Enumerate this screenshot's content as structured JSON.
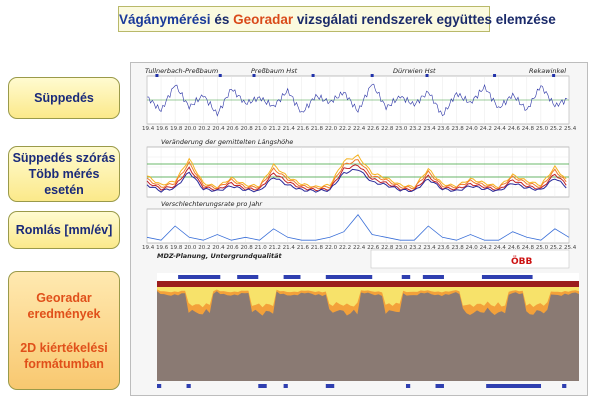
{
  "title": {
    "part1": "Vágánymérési",
    "part2": " és ",
    "part3": "Georadar",
    "part4": " vizsgálati rendszerek együttes elemzése"
  },
  "left_labels": {
    "suppedes": "Süppedés",
    "szoras_line1": "Süppedés szórás",
    "szoras_line2": "Több mérés esetén",
    "romlas": "Romlás [mm/év]",
    "geo_line1": "Georadar",
    "geo_line2": "eredmények",
    "geo_line3": "2D kiértékelési",
    "geo_line4": "formátumban"
  },
  "panel": {
    "stations": [
      "Tullnerbach-Preßbaum",
      "Preßbaum Hst",
      "Dürrwien Hst",
      "Rekawinkel"
    ],
    "chart2_title": "Veränderung der gemittelten Längshöhe",
    "chart3_title": "Verschlechterungsrate pro Jahr",
    "gpr_title": "MDZ-Planung, Untergrundqualität",
    "obb": "ÖBB"
  },
  "chart_data": [
    {
      "type": "line",
      "name_ref": "chart1",
      "x": [
        19.4,
        19.6,
        19.8,
        20.0,
        20.2,
        20.4,
        20.6,
        20.8,
        21.0,
        21.2,
        21.4,
        21.6,
        21.8,
        22.0,
        22.2,
        22.4,
        22.6,
        22.8,
        23.0,
        23.2,
        23.4,
        23.6,
        23.8,
        24.0,
        24.2,
        24.4,
        24.6,
        24.8,
        25.0,
        25.2,
        25.4
      ],
      "x_ticks": [
        "19.4",
        "19.6",
        "19.8",
        "20.0",
        "20.2",
        "20.4",
        "20.6",
        "20.8",
        "21.0",
        "21.2",
        "21.4",
        "21.6",
        "21.8",
        "22.0",
        "22.2",
        "22.4",
        "22.6",
        "22.8",
        "23.0",
        "23.2",
        "23.4",
        "23.6",
        "23.8",
        "24.0",
        "24.2",
        "24.4",
        "24.6",
        "24.8",
        "25.0",
        "25.2",
        "25.4"
      ],
      "series": [
        {
          "values": [
            0.5,
            -1.8,
            2.6,
            -1.2,
            0.8,
            -2.4,
            1.9,
            -0.6,
            0.4,
            -1.1,
            1.6,
            -2.2,
            0.7,
            -0.4,
            1.3,
            -1.9,
            2.8,
            -1.3,
            0.6,
            -0.8,
            1.4,
            -2.6,
            1.1,
            -0.5,
            2.2,
            -1.4,
            0.9,
            -1.7,
            2.4,
            -1.0,
            0.3
          ]
        }
      ],
      "ylim": [
        -4,
        4
      ]
    },
    {
      "type": "line",
      "name_ref": "chart2",
      "x": [
        19.4,
        19.6,
        19.8,
        20.0,
        20.2,
        20.4,
        20.6,
        20.8,
        21.0,
        21.2,
        21.4,
        21.6,
        21.8,
        22.0,
        22.2,
        22.4,
        22.6,
        22.8,
        23.0,
        23.2,
        23.4,
        23.6,
        23.8,
        24.0,
        24.2,
        24.4,
        24.6,
        24.8,
        25.0,
        25.2,
        25.4
      ],
      "series": [
        {
          "values": [
            2.1,
            1.2,
            1.6,
            3.8,
            1.4,
            1.0,
            1.9,
            1.2,
            1.1,
            3.2,
            2.0,
            1.3,
            1.0,
            1.2,
            3.6,
            4.1,
            2.4,
            1.9,
            1.2,
            1.0,
            2.8,
            1.3,
            1.1,
            1.8,
            1.4,
            1.0,
            2.2,
            1.6,
            1.2,
            3.0,
            1.4
          ]
        },
        {
          "values": [
            1.8,
            1.0,
            1.4,
            3.4,
            1.2,
            0.9,
            1.7,
            1.0,
            1.0,
            2.8,
            1.8,
            1.1,
            0.9,
            1.0,
            3.2,
            3.7,
            2.1,
            1.7,
            1.0,
            0.9,
            2.5,
            1.1,
            1.0,
            1.6,
            1.2,
            0.9,
            2.0,
            1.4,
            1.0,
            2.7,
            1.2
          ]
        },
        {
          "values": [
            1.5,
            0.8,
            1.1,
            2.9,
            1.0,
            0.7,
            1.4,
            0.8,
            0.8,
            2.4,
            1.5,
            0.9,
            0.7,
            0.8,
            2.8,
            3.2,
            1.8,
            1.4,
            0.8,
            0.7,
            2.1,
            0.9,
            0.8,
            1.3,
            1.0,
            0.7,
            1.7,
            1.1,
            0.8,
            2.3,
            1.0
          ]
        },
        {
          "values": [
            1.2,
            0.6,
            0.9,
            2.5,
            0.8,
            0.6,
            1.1,
            0.7,
            0.6,
            2.0,
            1.2,
            0.7,
            0.6,
            0.7,
            2.4,
            2.8,
            1.5,
            1.2,
            0.7,
            0.6,
            1.8,
            0.8,
            0.6,
            1.1,
            0.8,
            0.6,
            1.4,
            0.9,
            0.7,
            1.9,
            0.8
          ]
        }
      ],
      "ylim": [
        0,
        5
      ]
    },
    {
      "type": "line",
      "name_ref": "chart3",
      "x": [
        19.4,
        19.6,
        19.8,
        20.0,
        20.2,
        20.4,
        20.6,
        20.8,
        21.0,
        21.2,
        21.4,
        21.6,
        21.8,
        22.0,
        22.2,
        22.4,
        22.6,
        22.8,
        23.0,
        23.2,
        23.4,
        23.6,
        23.8,
        24.0,
        24.2,
        24.4,
        24.6,
        24.8,
        25.0,
        25.2,
        25.4
      ],
      "series": [
        {
          "values": [
            0.2,
            0.1,
            0.6,
            0.2,
            0.1,
            0.3,
            0.1,
            0.2,
            0.1,
            0.5,
            0.2,
            0.1,
            0.1,
            0.2,
            0.4,
            1.0,
            0.3,
            0.2,
            0.1,
            0.1,
            0.6,
            0.2,
            0.1,
            0.3,
            0.1,
            0.1,
            0.4,
            0.2,
            0.1,
            0.5,
            0.2
          ]
        }
      ],
      "ylim": [
        0,
        1.2
      ]
    }
  ]
}
